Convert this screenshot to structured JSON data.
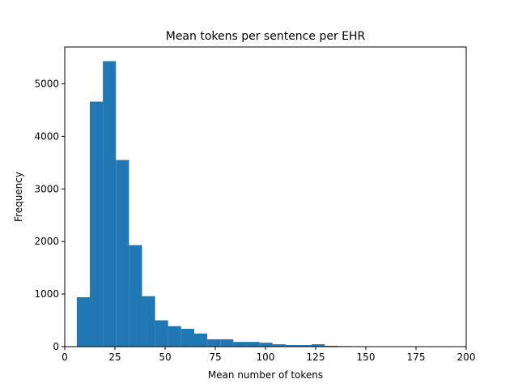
{
  "chart_data": {
    "type": "bar",
    "title": "Mean tokens per sentence per EHR",
    "xlabel": "Mean number of tokens",
    "ylabel": "Frequency",
    "xlim": [
      0,
      200
    ],
    "ylim": [
      0,
      5700
    ],
    "xticks": [
      0,
      25,
      50,
      75,
      100,
      125,
      150,
      175,
      200
    ],
    "yticks": [
      0,
      1000,
      2000,
      3000,
      4000,
      5000
    ],
    "grid": false,
    "legend": "none",
    "bar_color": "#1f77b4",
    "bins": [
      {
        "start": 6,
        "end": 12.5,
        "value": 940
      },
      {
        "start": 12.5,
        "end": 19,
        "value": 4660
      },
      {
        "start": 19,
        "end": 25.5,
        "value": 5430
      },
      {
        "start": 25.5,
        "end": 32,
        "value": 3550
      },
      {
        "start": 32,
        "end": 38.5,
        "value": 1930
      },
      {
        "start": 38.5,
        "end": 45,
        "value": 960
      },
      {
        "start": 45,
        "end": 51.5,
        "value": 500
      },
      {
        "start": 51.5,
        "end": 58,
        "value": 390
      },
      {
        "start": 58,
        "end": 64.5,
        "value": 340
      },
      {
        "start": 64.5,
        "end": 71,
        "value": 250
      },
      {
        "start": 71,
        "end": 77.5,
        "value": 140
      },
      {
        "start": 77.5,
        "end": 84,
        "value": 140
      },
      {
        "start": 84,
        "end": 90.5,
        "value": 90
      },
      {
        "start": 90.5,
        "end": 97,
        "value": 90
      },
      {
        "start": 97,
        "end": 103.5,
        "value": 75
      },
      {
        "start": 103.5,
        "end": 110,
        "value": 45
      },
      {
        "start": 110,
        "end": 116.5,
        "value": 30
      },
      {
        "start": 116.5,
        "end": 123,
        "value": 30
      },
      {
        "start": 123,
        "end": 129.5,
        "value": 45
      },
      {
        "start": 129.5,
        "end": 136,
        "value": 15
      },
      {
        "start": 136,
        "end": 142.5,
        "value": 10
      },
      {
        "start": 142.5,
        "end": 149,
        "value": 8
      },
      {
        "start": 149,
        "end": 155.5,
        "value": 6
      },
      {
        "start": 155.5,
        "end": 162,
        "value": 5
      },
      {
        "start": 162,
        "end": 168.5,
        "value": 5
      },
      {
        "start": 168.5,
        "end": 175,
        "value": 4
      },
      {
        "start": 175,
        "end": 181.5,
        "value": 3
      },
      {
        "start": 181.5,
        "end": 188,
        "value": 3
      },
      {
        "start": 188,
        "end": 194.5,
        "value": 2
      }
    ]
  }
}
